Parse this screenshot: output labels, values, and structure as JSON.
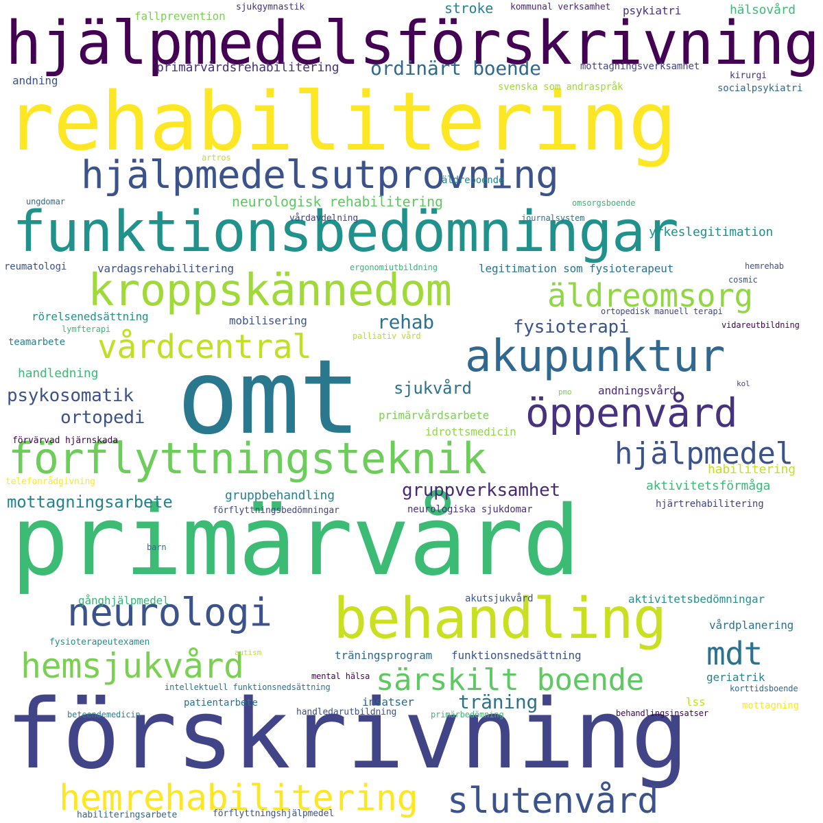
{
  "palette": {
    "dark_purple": "#440154",
    "indigo": "#3b528b",
    "blue": "#31688e",
    "teal": "#21918c",
    "green": "#35b779",
    "light_green": "#90d743",
    "yellow": "#fde725"
  },
  "words": [
    {
      "text": "hjälpmedelsförskrivning",
      "color": "#440154",
      "size": 90
    },
    {
      "text": "rehabilitering",
      "color": "#fde725",
      "size": 118
    },
    {
      "text": "hjälpmedelsutprovning",
      "color": "#3b528b",
      "size": 56
    },
    {
      "text": "funktionsbedömningar",
      "color": "#21918c",
      "size": 82
    },
    {
      "text": "kroppskännedom",
      "color": "#a0da39",
      "size": 64
    },
    {
      "text": "äldreomsorg",
      "color": "#90d743",
      "size": 46
    },
    {
      "text": "vårdcentral",
      "color": "#c2df23",
      "size": 48
    },
    {
      "text": "akupunktur",
      "color": "#31688e",
      "size": 64
    },
    {
      "text": "omt",
      "color": "#2a788e",
      "size": 150
    },
    {
      "text": "öppenvård",
      "color": "#46327e",
      "size": 58
    },
    {
      "text": "förflyttningsteknik",
      "color": "#6ccd5a",
      "size": 62
    },
    {
      "text": "hjälpmedel",
      "color": "#3b528b",
      "size": 44
    },
    {
      "text": "primärvård",
      "color": "#3cbb75",
      "size": 140
    },
    {
      "text": "neurologi",
      "color": "#3b528b",
      "size": 56
    },
    {
      "text": "behandling",
      "color": "#c8e020",
      "size": 82
    },
    {
      "text": "mdt",
      "color": "#2c728e",
      "size": 46
    },
    {
      "text": "hemsjukvård",
      "color": "#7ad151",
      "size": 50
    },
    {
      "text": "särskilt boende",
      "color": "#5ec962",
      "size": 44
    },
    {
      "text": "förskrivning",
      "color": "#414487",
      "size": 140
    },
    {
      "text": "hemrehabilitering",
      "color": "#fde725",
      "size": 52
    },
    {
      "text": "slutenvård",
      "color": "#3b528b",
      "size": 52
    },
    {
      "text": "ordinärt boende",
      "color": "#31688e",
      "size": 28
    },
    {
      "text": "rehab",
      "color": "#2c728e",
      "size": 28
    },
    {
      "text": "fysioterapi",
      "color": "#3b528b",
      "size": 26
    },
    {
      "text": "gruppverksamhet",
      "color": "#482878",
      "size": 26
    },
    {
      "text": "psykosomatik",
      "color": "#3b528b",
      "size": 26
    },
    {
      "text": "ortopedi",
      "color": "#3b528b",
      "size": 26
    },
    {
      "text": "sjukvård",
      "color": "#2c728e",
      "size": 24
    },
    {
      "text": "mottagningsarbete",
      "color": "#26828e",
      "size": 24
    },
    {
      "text": "träning",
      "color": "#2c728e",
      "size": 28
    },
    {
      "text": "stroke",
      "color": "#26828e",
      "size": 20
    },
    {
      "text": "yrkeslegitimation",
      "color": "#21918c",
      "size": 18
    },
    {
      "text": "fallprevention",
      "color": "#7ad151",
      "size": 16
    },
    {
      "text": "sjukgymnastik",
      "color": "#46327e",
      "size": 13
    },
    {
      "text": "kommunal verksamhet",
      "color": "#482878",
      "size": 13
    },
    {
      "text": "psykiatri",
      "color": "#46327e",
      "size": 16
    },
    {
      "text": "hälsovård",
      "color": "#3cbb75",
      "size": 18
    },
    {
      "text": "primärvårdsrehabilitering",
      "color": "#46327e",
      "size": 18
    },
    {
      "text": "mottagningsverksamhet",
      "color": "#414487",
      "size": 14
    },
    {
      "text": "kirurgi",
      "color": "#46327e",
      "size": 13
    },
    {
      "text": "andning",
      "color": "#3b528b",
      "size": 16
    },
    {
      "text": "svenska som andraspråk",
      "color": "#a0da39",
      "size": 14
    },
    {
      "text": "socialpsykiatri",
      "color": "#31688e",
      "size": 14
    },
    {
      "text": "artros",
      "color": "#c2df23",
      "size": 12
    },
    {
      "text": "äldreboende",
      "color": "#26828e",
      "size": 14
    },
    {
      "text": "neurologisk rehabilitering",
      "color": "#5ec962",
      "size": 20
    },
    {
      "text": "ungdomar",
      "color": "#31688e",
      "size": 12
    },
    {
      "text": "omsorgsboende",
      "color": "#35b779",
      "size": 12
    },
    {
      "text": "vårdavdelning",
      "color": "#414487",
      "size": 13
    },
    {
      "text": "journalsystem",
      "color": "#2c728e",
      "size": 12
    },
    {
      "text": "reumatologi",
      "color": "#3b528b",
      "size": 14
    },
    {
      "text": "vardagsrehabilitering",
      "color": "#3b528b",
      "size": 16
    },
    {
      "text": "ergonomiutbildning",
      "color": "#35b779",
      "size": 12
    },
    {
      "text": "legitimation som fysioterapeut",
      "color": "#2c728e",
      "size": 16
    },
    {
      "text": "hemrehab",
      "color": "#3b528b",
      "size": 12
    },
    {
      "text": "cosmic",
      "color": "#3b528b",
      "size": 12
    },
    {
      "text": "rörelsenedsättning",
      "color": "#21918c",
      "size": 16
    },
    {
      "text": "mobilisering",
      "color": "#3b528b",
      "size": 16
    },
    {
      "text": "ortopedisk manuell terapi",
      "color": "#414487",
      "size": 12
    },
    {
      "text": "vidareutbildning",
      "color": "#440154",
      "size": 12
    },
    {
      "text": "lymfterapi",
      "color": "#3cbb75",
      "size": 12
    },
    {
      "text": "palliativ vård",
      "color": "#b5de2b",
      "size": 12
    },
    {
      "text": "teamarbete",
      "color": "#26828e",
      "size": 14
    },
    {
      "text": "handledning",
      "color": "#3cbb75",
      "size": 18
    },
    {
      "text": "andningsvård",
      "color": "#482878",
      "size": 16
    },
    {
      "text": "pmo",
      "color": "#7ad151",
      "size": 11
    },
    {
      "text": "kol",
      "color": "#414487",
      "size": 11
    },
    {
      "text": "primärvårdsarbete",
      "color": "#7ad151",
      "size": 16
    },
    {
      "text": "idrottsmedicin",
      "color": "#90d743",
      "size": 16
    },
    {
      "text": "förvärvad hjärnskada",
      "color": "#440154",
      "size": 13
    },
    {
      "text": "habilitering",
      "color": "#c2df23",
      "size": 18
    },
    {
      "text": "telefonrådgivning",
      "color": "#fde725",
      "size": 13
    },
    {
      "text": "aktivitetsförmåga",
      "color": "#3cbb75",
      "size": 18
    },
    {
      "text": "gruppbehandling",
      "color": "#26828e",
      "size": 18
    },
    {
      "text": "förflyttningsbedömningar",
      "color": "#414487",
      "size": 13
    },
    {
      "text": "neurologiska sjukdomar",
      "color": "#46327e",
      "size": 14
    },
    {
      "text": "hjärtrehabilitering",
      "color": "#414487",
      "size": 14
    },
    {
      "text": "barn",
      "color": "#2c728e",
      "size": 12
    },
    {
      "text": "gånghjälpmedel",
      "color": "#35b779",
      "size": 16
    },
    {
      "text": "akutsjukvård",
      "color": "#3b528b",
      "size": 14
    },
    {
      "text": "aktivitetsbedömningar",
      "color": "#21918c",
      "size": 16
    },
    {
      "text": "vårdplanering",
      "color": "#2c728e",
      "size": 16
    },
    {
      "text": "fysioterapeutexamen",
      "color": "#21918c",
      "size": 13
    },
    {
      "text": "autism",
      "color": "#c2df23",
      "size": 11
    },
    {
      "text": "träningsprogram",
      "color": "#31688e",
      "size": 16
    },
    {
      "text": "funktionsnedsättning",
      "color": "#3b528b",
      "size": 16
    },
    {
      "text": "mental hälsa",
      "color": "#440154",
      "size": 12
    },
    {
      "text": "geriatrik",
      "color": "#26828e",
      "size": 16
    },
    {
      "text": "intellektuell funktionsnedsättning",
      "color": "#2c728e",
      "size": 12
    },
    {
      "text": "korttidsboende",
      "color": "#31688e",
      "size": 12
    },
    {
      "text": "patientarbete",
      "color": "#2c728e",
      "size": 14
    },
    {
      "text": "insatser",
      "color": "#31688e",
      "size": 16
    },
    {
      "text": "lss",
      "color": "#c2df23",
      "size": 16
    },
    {
      "text": "mottagning",
      "color": "#fde725",
      "size": 14
    },
    {
      "text": "beteendemedicin",
      "color": "#26828e",
      "size": 12
    },
    {
      "text": "handledarutbildning",
      "color": "#3b528b",
      "size": 13
    },
    {
      "text": "primärbedömning",
      "color": "#3cbb75",
      "size": 12
    },
    {
      "text": "behandlingsinsatser",
      "color": "#440154",
      "size": 12
    },
    {
      "text": "habiliteringsarbete",
      "color": "#31688e",
      "size": 13
    },
    {
      "text": "förflyttningshjälpmedel",
      "color": "#3b528b",
      "size": 13
    }
  ]
}
